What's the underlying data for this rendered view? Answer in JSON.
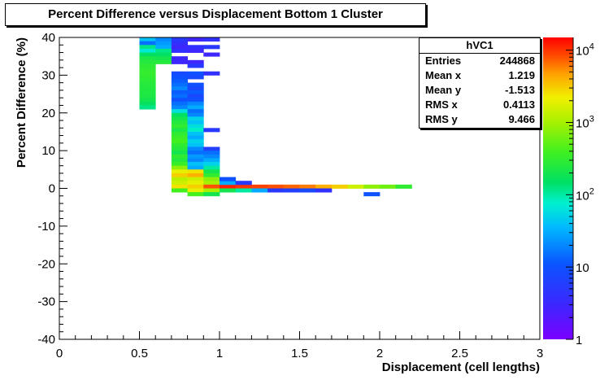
{
  "title": "Percent Difference versus Displacement Bottom 1 Cluster",
  "stats_box": {
    "name": "hVC1",
    "rows": [
      {
        "key": "Entries",
        "value": "244868"
      },
      {
        "key": "Mean x",
        "value": "1.219"
      },
      {
        "key": "Mean y",
        "value": "-1.513"
      },
      {
        "key": "RMS x",
        "value": "0.4113"
      },
      {
        "key": "RMS y",
        "value": "9.466"
      }
    ]
  },
  "colorbar_labels": [
    {
      "base": "1",
      "exp": "",
      "value": 1
    },
    {
      "base": "10",
      "exp": "",
      "value": 10
    },
    {
      "base": "10",
      "exp": "2",
      "value": 100
    },
    {
      "base": "10",
      "exp": "3",
      "value": 1000
    },
    {
      "base": "10",
      "exp": "4",
      "value": 10000
    }
  ],
  "chart_data": {
    "type": "heatmap",
    "title": "Percent Difference versus Displacement Bottom 1 Cluster",
    "xlabel": "Displacement (cell lengths)",
    "ylabel": "Percent Difference (%)",
    "xlim": [
      0,
      3
    ],
    "ylim": [
      -40,
      40
    ],
    "x_ticks": [
      "0",
      "0.5",
      "1",
      "1.5",
      "2",
      "2.5",
      "3"
    ],
    "y_ticks": [
      "-40",
      "-30",
      "-20",
      "-10",
      "0",
      "10",
      "20",
      "30",
      "40"
    ],
    "z_scale": "log",
    "z_range": [
      1,
      15000
    ],
    "bin_width_x": 0.1,
    "bin_height_y": 1,
    "cells_format": "[x_low, y_low, count]",
    "cells": [
      [
        0.5,
        39,
        40
      ],
      [
        0.5,
        38,
        15
      ],
      [
        0.5,
        37,
        120
      ],
      [
        0.5,
        36,
        70
      ],
      [
        0.5,
        35,
        150
      ],
      [
        0.5,
        34,
        220
      ],
      [
        0.5,
        33,
        260
      ],
      [
        0.5,
        32,
        290
      ],
      [
        0.5,
        31,
        310
      ],
      [
        0.5,
        30,
        320
      ],
      [
        0.5,
        29,
        300
      ],
      [
        0.5,
        28,
        280
      ],
      [
        0.5,
        27,
        260
      ],
      [
        0.5,
        26,
        250
      ],
      [
        0.5,
        25,
        240
      ],
      [
        0.5,
        24,
        230
      ],
      [
        0.5,
        23,
        200
      ],
      [
        0.5,
        22,
        160
      ],
      [
        0.5,
        21,
        120
      ],
      [
        0.6,
        39,
        20
      ],
      [
        0.6,
        38,
        25
      ],
      [
        0.6,
        37,
        30
      ],
      [
        0.6,
        36,
        120
      ],
      [
        0.6,
        35,
        150
      ],
      [
        0.6,
        34,
        200
      ],
      [
        0.6,
        33,
        260
      ],
      [
        0.7,
        39,
        5
      ],
      [
        0.7,
        38,
        4
      ],
      [
        0.7,
        37,
        3
      ],
      [
        0.7,
        36,
        4
      ],
      [
        0.7,
        34,
        3
      ],
      [
        0.7,
        33,
        3
      ],
      [
        0.7,
        30,
        8
      ],
      [
        0.7,
        29,
        10
      ],
      [
        0.7,
        28,
        12
      ],
      [
        0.7,
        27,
        15
      ],
      [
        0.7,
        26,
        20
      ],
      [
        0.7,
        25,
        12
      ],
      [
        0.7,
        24,
        15
      ],
      [
        0.7,
        23,
        10
      ],
      [
        0.7,
        22,
        15
      ],
      [
        0.7,
        21,
        20
      ],
      [
        0.7,
        20,
        60
      ],
      [
        0.7,
        19,
        150
      ],
      [
        0.7,
        18,
        200
      ],
      [
        0.7,
        17,
        250
      ],
      [
        0.7,
        16,
        300
      ],
      [
        0.7,
        15,
        220
      ],
      [
        0.7,
        14,
        300
      ],
      [
        0.7,
        13,
        350
      ],
      [
        0.7,
        12,
        400
      ],
      [
        0.7,
        11,
        300
      ],
      [
        0.7,
        10,
        250
      ],
      [
        0.7,
        9,
        200
      ],
      [
        0.7,
        8,
        300
      ],
      [
        0.7,
        7,
        250
      ],
      [
        0.7,
        6,
        350
      ],
      [
        0.7,
        5,
        800
      ],
      [
        0.7,
        4,
        2000
      ],
      [
        0.7,
        3,
        3000
      ],
      [
        0.7,
        2,
        1200
      ],
      [
        0.7,
        1,
        1500
      ],
      [
        0.7,
        0,
        2500
      ],
      [
        0.7,
        -1,
        400
      ],
      [
        0.8,
        39,
        3
      ],
      [
        0.8,
        37,
        4
      ],
      [
        0.8,
        36,
        3
      ],
      [
        0.8,
        33,
        3
      ],
      [
        0.8,
        32,
        5
      ],
      [
        0.8,
        30,
        10
      ],
      [
        0.8,
        29,
        8
      ],
      [
        0.8,
        27,
        10
      ],
      [
        0.8,
        26,
        8
      ],
      [
        0.8,
        25,
        12
      ],
      [
        0.8,
        24,
        8
      ],
      [
        0.8,
        23,
        10
      ],
      [
        0.8,
        22,
        20
      ],
      [
        0.8,
        21,
        30
      ],
      [
        0.8,
        20,
        15
      ],
      [
        0.8,
        19,
        20
      ],
      [
        0.8,
        18,
        50
      ],
      [
        0.8,
        17,
        40
      ],
      [
        0.8,
        16,
        60
      ],
      [
        0.8,
        15,
        80
      ],
      [
        0.8,
        14,
        40
      ],
      [
        0.8,
        13,
        30
      ],
      [
        0.8,
        12,
        50
      ],
      [
        0.8,
        11,
        40
      ],
      [
        0.8,
        10,
        20
      ],
      [
        0.8,
        9,
        15
      ],
      [
        0.8,
        8,
        25
      ],
      [
        0.8,
        7,
        20
      ],
      [
        0.8,
        6,
        40
      ],
      [
        0.8,
        5,
        30
      ],
      [
        0.8,
        4,
        2500
      ],
      [
        0.8,
        3,
        4000
      ],
      [
        0.8,
        2,
        1500
      ],
      [
        0.8,
        1,
        2000
      ],
      [
        0.8,
        0,
        3000
      ],
      [
        0.8,
        -1,
        2000
      ],
      [
        0.8,
        -2,
        400
      ],
      [
        0.9,
        39,
        4
      ],
      [
        0.9,
        37,
        5
      ],
      [
        0.9,
        35,
        3
      ],
      [
        0.9,
        30,
        4
      ],
      [
        0.9,
        15,
        5
      ],
      [
        0.9,
        10,
        6
      ],
      [
        0.9,
        9,
        15
      ],
      [
        0.9,
        8,
        20
      ],
      [
        0.9,
        7,
        30
      ],
      [
        0.9,
        6,
        50
      ],
      [
        0.9,
        5,
        100
      ],
      [
        0.9,
        4,
        200
      ],
      [
        0.9,
        3,
        300
      ],
      [
        0.9,
        2,
        800
      ],
      [
        0.9,
        1,
        1000
      ],
      [
        0.9,
        0,
        8000
      ],
      [
        0.9,
        -1,
        1000
      ],
      [
        0.9,
        -2,
        200
      ],
      [
        1.0,
        0,
        12000
      ],
      [
        1.0,
        -1,
        200
      ],
      [
        1.0,
        1,
        30
      ],
      [
        1.0,
        2,
        10
      ],
      [
        1.1,
        0,
        10000
      ],
      [
        1.1,
        -1,
        100
      ],
      [
        1.1,
        1,
        5
      ],
      [
        1.2,
        0,
        9000
      ],
      [
        1.2,
        -1,
        30
      ],
      [
        1.3,
        0,
        8000
      ],
      [
        1.3,
        -1,
        5
      ],
      [
        1.4,
        0,
        7000
      ],
      [
        1.4,
        -1,
        6
      ],
      [
        1.5,
        0,
        6000
      ],
      [
        1.5,
        -1,
        8
      ],
      [
        1.6,
        0,
        4000
      ],
      [
        1.6,
        -1,
        4
      ],
      [
        1.7,
        0,
        3000
      ],
      [
        1.8,
        0,
        1500
      ],
      [
        1.9,
        0,
        800
      ],
      [
        1.9,
        -2,
        10
      ],
      [
        2.0,
        0,
        600
      ],
      [
        2.1,
        0,
        300
      ]
    ]
  }
}
